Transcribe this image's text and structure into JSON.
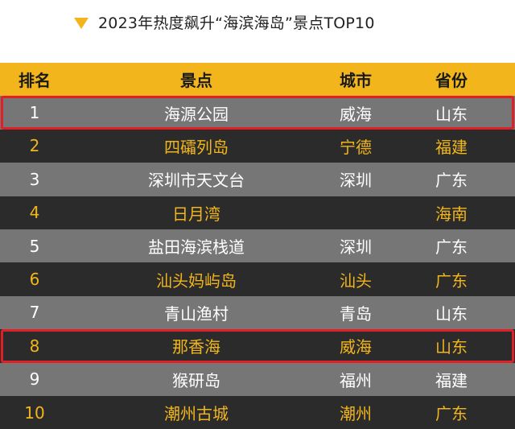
{
  "title": "2023年热度飙升“海滨海岛”景点TOP10",
  "colors": {
    "accent": "#f2b61c",
    "row_light": "#767676",
    "row_dark": "#2b2b2b",
    "highlight": "#e01f26"
  },
  "table": {
    "headers": {
      "rank": "排名",
      "name": "景点",
      "city": "城市",
      "province": "省份"
    },
    "rows": [
      {
        "rank": "1",
        "name": "海源公园",
        "city": "威海",
        "province": "山东"
      },
      {
        "rank": "2",
        "name": "四礵列岛",
        "city": "宁德",
        "province": "福建"
      },
      {
        "rank": "3",
        "name": "深圳市天文台",
        "city": "深圳",
        "province": "广东"
      },
      {
        "rank": "4",
        "name": "日月湾",
        "city": "",
        "province": "海南"
      },
      {
        "rank": "5",
        "name": "盐田海滨栈道",
        "city": "深圳",
        "province": "广东"
      },
      {
        "rank": "6",
        "name": "汕头妈屿岛",
        "city": "汕头",
        "province": "广东"
      },
      {
        "rank": "7",
        "name": "青山渔村",
        "city": "青岛",
        "province": "山东"
      },
      {
        "rank": "8",
        "name": "那香海",
        "city": "威海",
        "province": "山东"
      },
      {
        "rank": "9",
        "name": "猴研岛",
        "city": "福州",
        "province": "福建"
      },
      {
        "rank": "10",
        "name": "潮州古城",
        "city": "潮州",
        "province": "广东"
      }
    ]
  }
}
